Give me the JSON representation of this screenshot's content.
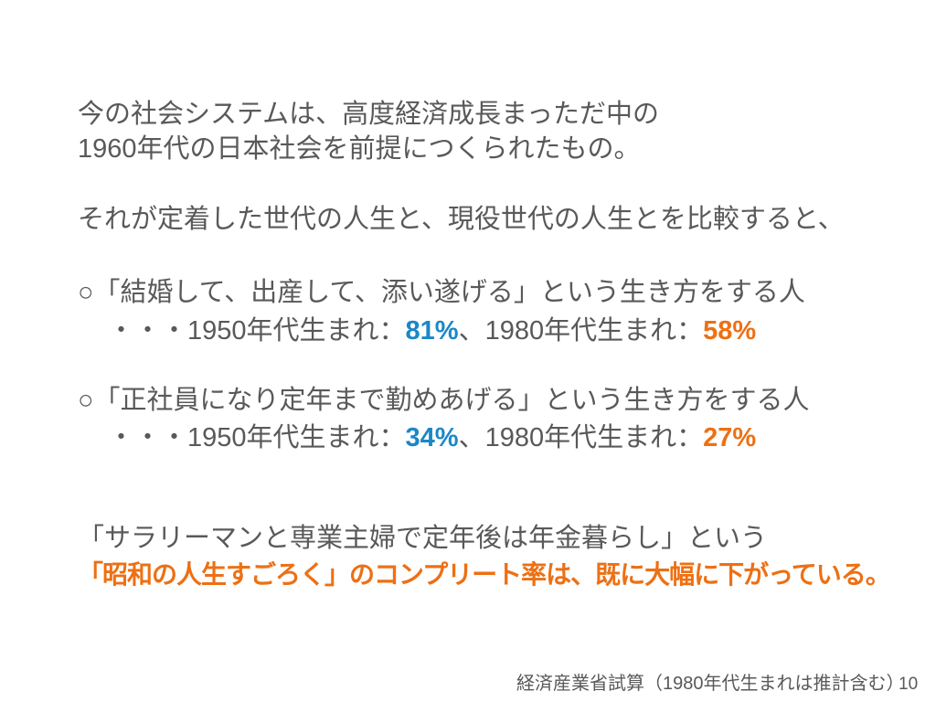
{
  "slide": {
    "colors": {
      "text_gray": "#595959",
      "accent_blue": "#1a87c7",
      "accent_orange": "#ed7014"
    },
    "intro": {
      "line1": "今の社会システムは、高度経済成長まっただ中の",
      "line2": "1960年代の日本社会を前提につくられたもの。"
    },
    "compare_text": "それが定着した世代の人生と、現役世代の人生とを比較すると、",
    "findings": [
      {
        "statement": "○「結婚して、出産して、添い遂げる」という生き方をする人",
        "prefix": "・・・1950年代生まれ：",
        "value_1950s": "81%",
        "middle": "、1980年代生まれ：",
        "value_1980s": "58%"
      },
      {
        "statement": "○「正社員になり定年まで勤めあげる」という生き方をする人",
        "prefix": "・・・1950年代生まれ：",
        "value_1950s": "34%",
        "middle": "、1980年代生まれ：",
        "value_1980s": "27%"
      }
    ],
    "conclusion": {
      "line1": "「サラリーマンと専業主婦で定年後は年金暮らし」という",
      "line2": "「昭和の人生すごろく」のコンプリート率は、既に大幅に下がっている。"
    },
    "source_note": "経済産業省試算（1980年代生まれは推計含む）",
    "page_number": "10"
  }
}
